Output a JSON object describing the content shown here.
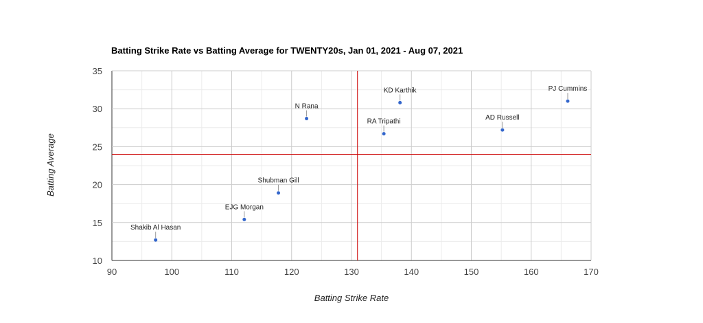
{
  "chart_data": {
    "type": "scatter",
    "title": "Batting Strike Rate vs Batting Average for TWENTY20s, Jan 01, 2021 - Aug 07, 2021",
    "xlabel": "Batting Strike Rate",
    "ylabel": "Batting Average",
    "xlim": [
      90,
      170
    ],
    "ylim": [
      10,
      35
    ],
    "x_ticks": [
      90,
      100,
      110,
      120,
      130,
      140,
      150,
      160,
      170
    ],
    "y_ticks": [
      10,
      15,
      20,
      25,
      30,
      35
    ],
    "grid": true,
    "point_color": "#3366cc",
    "reference_line_color": "#cc0000",
    "reference_lines": {
      "x": 131,
      "y": 24
    },
    "points": [
      {
        "label": "Shakib Al Hasan",
        "x": 97.3,
        "y": 12.7
      },
      {
        "label": "EJG Morgan",
        "x": 112.1,
        "y": 15.4
      },
      {
        "label": "Shubman Gill",
        "x": 117.8,
        "y": 18.9
      },
      {
        "label": "N Rana",
        "x": 122.5,
        "y": 28.7
      },
      {
        "label": "RA Tripathi",
        "x": 135.4,
        "y": 26.7
      },
      {
        "label": "KD Karthik",
        "x": 138.1,
        "y": 30.8
      },
      {
        "label": "AD Russell",
        "x": 155.2,
        "y": 27.2
      },
      {
        "label": "PJ Cummins",
        "x": 166.1,
        "y": 31.0
      }
    ]
  }
}
